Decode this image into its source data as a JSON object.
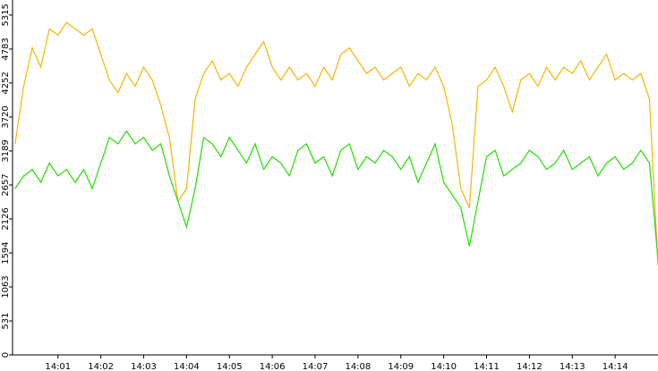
{
  "chart_data": {
    "type": "line",
    "x": [
      0,
      0.2,
      0.4,
      0.6,
      0.8,
      1,
      1.2,
      1.4,
      1.6,
      1.8,
      2,
      2.2,
      2.4,
      2.6,
      2.8,
      3,
      3.2,
      3.4,
      3.6,
      3.8,
      4,
      4.2,
      4.4,
      4.6,
      4.8,
      5,
      5.2,
      5.4,
      5.6,
      5.8,
      6,
      6.2,
      6.4,
      6.6,
      6.8,
      7,
      7.2,
      7.4,
      7.6,
      7.8,
      8,
      8.2,
      8.4,
      8.6,
      8.8,
      9,
      9.2,
      9.4,
      9.6,
      9.8,
      10,
      10.2,
      10.4,
      10.6,
      10.8,
      11,
      11.2,
      11.4,
      11.6,
      11.8,
      12,
      12.2,
      12.4,
      12.6,
      12.8,
      13,
      13.2,
      13.4,
      13.6,
      13.8,
      14,
      14.2,
      14.4,
      14.6,
      14.8,
      15
    ],
    "series": [
      {
        "color": "#f7b500",
        "values": [
          3300,
          4200,
          4800,
          4500,
          5100,
          5000,
          5200,
          5100,
          5000,
          5100,
          4700,
          4300,
          4100,
          4400,
          4200,
          4500,
          4300,
          3900,
          3400,
          2400,
          2600,
          4000,
          4400,
          4600,
          4300,
          4400,
          4200,
          4500,
          4700,
          4900,
          4500,
          4300,
          4500,
          4300,
          4400,
          4200,
          4500,
          4300,
          4700,
          4800,
          4600,
          4400,
          4500,
          4300,
          4400,
          4500,
          4200,
          4400,
          4300,
          4500,
          4200,
          3600,
          2600,
          2300,
          4200,
          4300,
          4500,
          4200,
          3800,
          4300,
          4400,
          4200,
          4500,
          4300,
          4500,
          4400,
          4600,
          4300,
          4500,
          4700,
          4300,
          4400,
          4300,
          4400,
          4000,
          1400
        ]
      },
      {
        "color": "#22dd00",
        "values": [
          2600,
          2800,
          2900,
          2700,
          3000,
          2800,
          2900,
          2700,
          2900,
          2600,
          3000,
          3400,
          3300,
          3500,
          3300,
          3400,
          3200,
          3300,
          2800,
          2400,
          2000,
          2600,
          3400,
          3300,
          3100,
          3400,
          3200,
          3000,
          3300,
          2900,
          3100,
          3000,
          2800,
          3200,
          3300,
          3000,
          3100,
          2800,
          3200,
          3300,
          2900,
          3100,
          3000,
          3200,
          3100,
          2900,
          3100,
          2700,
          3000,
          3300,
          2700,
          2500,
          2300,
          1700,
          2400,
          3100,
          3200,
          2800,
          2900,
          3000,
          3200,
          3100,
          2900,
          3000,
          3200,
          2900,
          3000,
          3100,
          2800,
          3000,
          3100,
          2900,
          3000,
          3200,
          3000,
          1500
        ]
      }
    ],
    "xlim": [
      -0.06,
      15
    ],
    "xticks": [
      {
        "value": 1,
        "label": "14:01"
      },
      {
        "value": 2,
        "label": "14:02"
      },
      {
        "value": 3,
        "label": "14:03"
      },
      {
        "value": 4,
        "label": "14:04"
      },
      {
        "value": 5,
        "label": "14:05"
      },
      {
        "value": 6,
        "label": "14:06"
      },
      {
        "value": 7,
        "label": "14:07"
      },
      {
        "value": 8,
        "label": "14:08"
      },
      {
        "value": 9,
        "label": "14:09"
      },
      {
        "value": 10,
        "label": "14:10"
      },
      {
        "value": 11,
        "label": "14:11"
      },
      {
        "value": 12,
        "label": "14:12"
      },
      {
        "value": 13,
        "label": "14:13"
      },
      {
        "value": 14,
        "label": "14:14"
      }
    ],
    "ylim": [
      0,
      5550
    ],
    "yticks": [
      0,
      531,
      1063,
      1594,
      2126,
      2657,
      3189,
      3720,
      4252,
      4783,
      5315
    ]
  }
}
